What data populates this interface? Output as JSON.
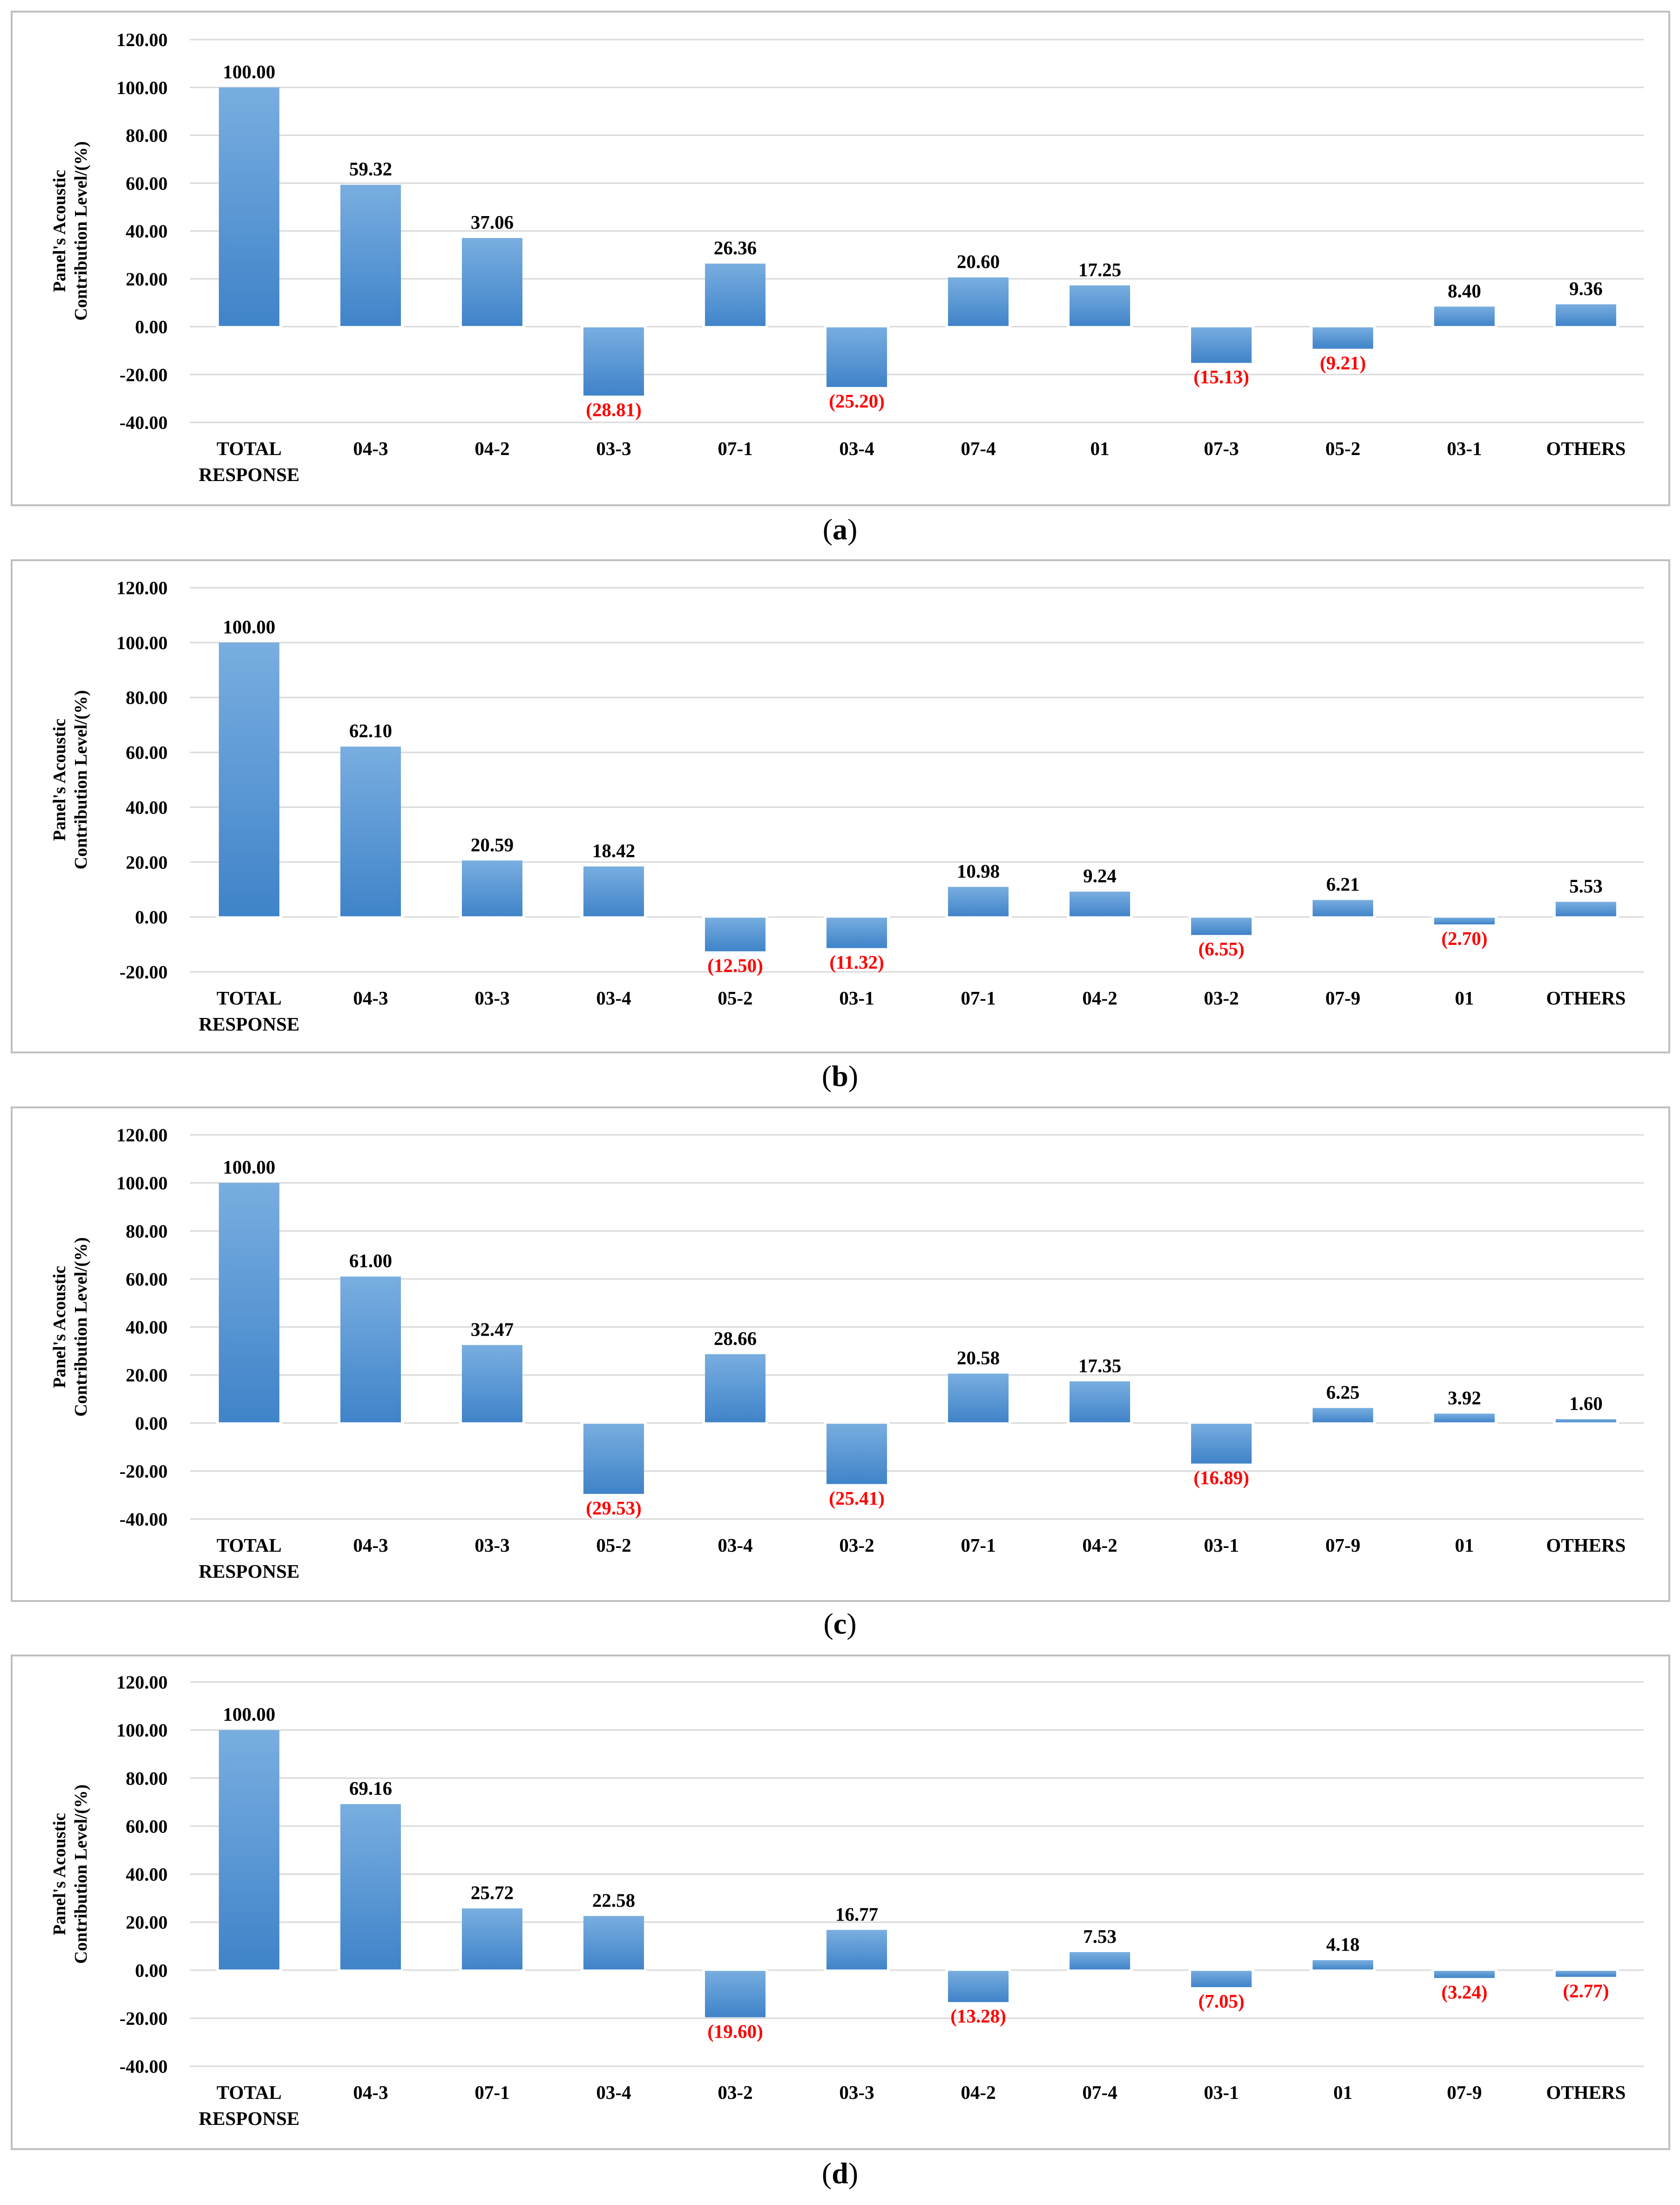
{
  "colors": {
    "bar_top": "#79aee0",
    "bar_bottom": "#3f83c9",
    "positive_label": "#000000",
    "negative_label": "#ff0000",
    "grid": "#d9d9d9",
    "frame": "#bfbfbf"
  },
  "chart_data": [
    {
      "type": "bar",
      "caption": "(a)",
      "ylabel": [
        "Panel's Acoustic",
        "Contribution Level/(%)"
      ],
      "ylim": [
        -40,
        120
      ],
      "yticks": [
        "120.00",
        "100.00",
        "80.00",
        "60.00",
        "40.00",
        "20.00",
        "0.00",
        "-20.00",
        "-40.00"
      ],
      "categories": [
        [
          "TOTAL",
          "RESPONSE"
        ],
        [
          "04-3"
        ],
        [
          "04-2"
        ],
        [
          "03-3"
        ],
        [
          "07-1"
        ],
        [
          "03-4"
        ],
        [
          "07-4"
        ],
        [
          "01"
        ],
        [
          "07-3"
        ],
        [
          "05-2"
        ],
        [
          "03-1"
        ],
        [
          "OTHERS"
        ]
      ],
      "values": [
        100.0,
        59.32,
        37.06,
        -28.81,
        26.36,
        -25.2,
        20.6,
        17.25,
        -15.13,
        -9.21,
        8.4,
        9.36
      ],
      "labels": [
        "100.00",
        "59.32",
        "37.06",
        "(28.81)",
        "26.36",
        "(25.20)",
        "20.60",
        "17.25",
        "(15.13)",
        "(9.21)",
        "8.40",
        "9.36"
      ]
    },
    {
      "type": "bar",
      "caption": "(b)",
      "ylabel": [
        "Panel's Acoustic",
        "Contribution Level/(%)"
      ],
      "ylim": [
        -20,
        120
      ],
      "yticks": [
        "120.00",
        "100.00",
        "80.00",
        "60.00",
        "40.00",
        "20.00",
        "0.00",
        "-20.00"
      ],
      "categories": [
        [
          "TOTAL",
          "RESPONSE"
        ],
        [
          "04-3"
        ],
        [
          "03-3"
        ],
        [
          "03-4"
        ],
        [
          "05-2"
        ],
        [
          "03-1"
        ],
        [
          "07-1"
        ],
        [
          "04-2"
        ],
        [
          "03-2"
        ],
        [
          "07-9"
        ],
        [
          "01"
        ],
        [
          "OTHERS"
        ]
      ],
      "values": [
        100.0,
        62.1,
        20.59,
        18.42,
        -12.5,
        -11.32,
        10.98,
        9.24,
        -6.55,
        6.21,
        -2.7,
        5.53
      ],
      "labels": [
        "100.00",
        "62.10",
        "20.59",
        "18.42",
        "(12.50)",
        "(11.32)",
        "10.98",
        "9.24",
        "(6.55)",
        "6.21",
        "(2.70)",
        "5.53"
      ]
    },
    {
      "type": "bar",
      "caption": "(c)",
      "ylabel": [
        "Panel's Acoustic",
        "Contribution Level/(%)"
      ],
      "ylim": [
        -40,
        120
      ],
      "yticks": [
        "120.00",
        "100.00",
        "80.00",
        "60.00",
        "40.00",
        "20.00",
        "0.00",
        "-20.00",
        "-40.00"
      ],
      "categories": [
        [
          "TOTAL",
          "RESPONSE"
        ],
        [
          "04-3"
        ],
        [
          "03-3"
        ],
        [
          "05-2"
        ],
        [
          "03-4"
        ],
        [
          "03-2"
        ],
        [
          "07-1"
        ],
        [
          "04-2"
        ],
        [
          "03-1"
        ],
        [
          "07-9"
        ],
        [
          "01"
        ],
        [
          "OTHERS"
        ]
      ],
      "values": [
        100.0,
        61.0,
        32.47,
        -29.53,
        28.66,
        -25.41,
        20.58,
        17.35,
        -16.89,
        6.25,
        3.92,
        1.6
      ],
      "labels": [
        "100.00",
        "61.00",
        "32.47",
        "(29.53)",
        "28.66",
        "(25.41)",
        "20.58",
        "17.35",
        "(16.89)",
        "6.25",
        "3.92",
        "1.60"
      ]
    },
    {
      "type": "bar",
      "caption": "(d)",
      "ylabel": [
        "Panel's Acoustic",
        "Contribution Level/(%)"
      ],
      "ylim": [
        -40,
        120
      ],
      "yticks": [
        "120.00",
        "100.00",
        "80.00",
        "60.00",
        "40.00",
        "20.00",
        "0.00",
        "-20.00",
        "-40.00"
      ],
      "categories": [
        [
          "TOTAL",
          "RESPONSE"
        ],
        [
          "04-3"
        ],
        [
          "07-1"
        ],
        [
          "03-4"
        ],
        [
          "03-2"
        ],
        [
          "03-3"
        ],
        [
          "04-2"
        ],
        [
          "07-4"
        ],
        [
          "03-1"
        ],
        [
          "01"
        ],
        [
          "07-9"
        ],
        [
          "OTHERS"
        ]
      ],
      "values": [
        100.0,
        69.16,
        25.72,
        22.58,
        -19.6,
        16.77,
        -13.28,
        7.53,
        -7.05,
        4.18,
        -3.24,
        -2.77
      ],
      "labels": [
        "100.00",
        "69.16",
        "25.72",
        "22.58",
        "(19.60)",
        "16.77",
        "(13.28)",
        "7.53",
        "(7.05)",
        "4.18",
        "(3.24)",
        "(2.77)"
      ]
    }
  ]
}
